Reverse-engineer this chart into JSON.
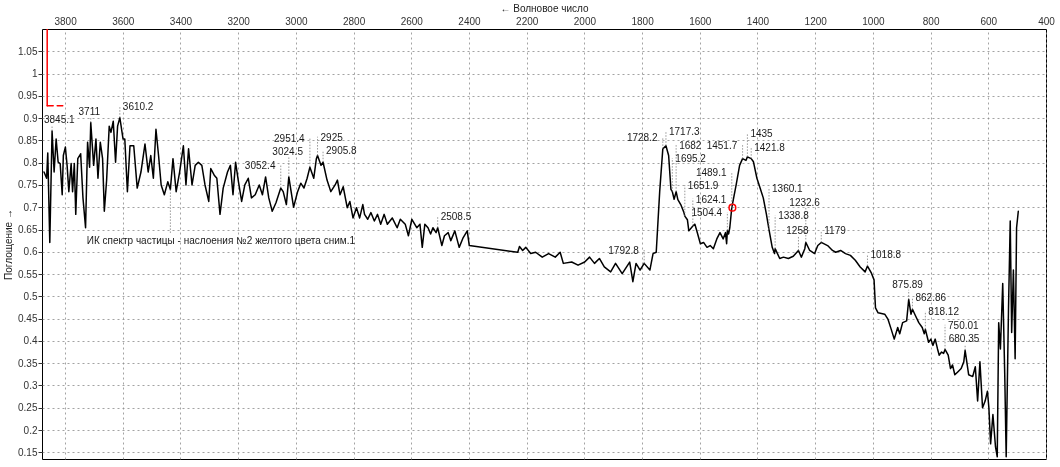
{
  "chart_data": {
    "type": "line",
    "xlabel": "← Волновое число",
    "ylabel": "Поглощение →",
    "xlim": [
      3880,
      400
    ],
    "ylim": [
      0.135,
      1.1
    ],
    "xticks": [
      3800,
      3600,
      3400,
      3200,
      3000,
      2800,
      2600,
      2400,
      2200,
      2000,
      1800,
      1600,
      1400,
      1200,
      1000,
      800,
      600,
      400
    ],
    "yticks": [
      0.15,
      0.2,
      0.25,
      0.3,
      0.35,
      0.4,
      0.45,
      0.5,
      0.55,
      0.6,
      0.65,
      0.7,
      0.75,
      0.8,
      0.85,
      0.9,
      0.95,
      1,
      1.05
    ],
    "grid": true,
    "series": [
      {
        "color": "#000000",
        "x": [
          3873,
          3864,
          3860,
          3853,
          3845.1,
          3838,
          3831,
          3824,
          3817,
          3810,
          3806,
          3799,
          3793,
          3787,
          3779,
          3774,
          3768,
          3763,
          3756,
          3746,
          3738,
          3729,
          3722,
          3715,
          3711,
          3701,
          3693,
          3686,
          3678,
          3670,
          3664,
          3656,
          3647,
          3641,
          3633,
          3625,
          3618,
          3610.2,
          3599,
          3593,
          3584,
          3575,
          3562,
          3550,
          3537,
          3523,
          3512,
          3503,
          3494,
          3485,
          3476,
          3467,
          3456,
          3444,
          3435,
          3426,
          3415,
          3403,
          3390,
          3381,
          3372,
          3360,
          3349,
          3338,
          3326,
          3315,
          3302,
          3295,
          3283,
          3274,
          3263,
          3252,
          3237,
          3227,
          3218,
          3209,
          3199,
          3188,
          3177,
          3165,
          3154,
          3141,
          3127,
          3116,
          3105,
          3094,
          3082,
          3069,
          3052.4,
          3044,
          3033,
          3024.5,
          3008,
          2994,
          2983,
          2972,
          2961,
          2951.4,
          2938,
          2929,
          2925,
          2913,
          2905.8,
          2892,
          2879,
          2864,
          2856,
          2847,
          2836,
          2822,
          2813,
          2802,
          2790,
          2779,
          2768,
          2762,
          2751,
          2740,
          2728,
          2717,
          2706,
          2694,
          2683,
          2666,
          2649,
          2638,
          2621,
          2610,
          2598,
          2581,
          2570,
          2562,
          2553,
          2542,
          2533,
          2525,
          2514,
          2508.5,
          2494,
          2485,
          2472,
          2463,
          2449,
          2434,
          2420,
          2406,
          2399,
          2231,
          2225,
          2214,
          2203,
          2186,
          2169,
          2146,
          2124,
          2101,
          2084,
          2073,
          2044,
          2022,
          1999,
          1982,
          1965,
          1948,
          1931,
          1909,
          1892,
          1869,
          1843,
          1832,
          1821,
          1807,
          1792.8,
          1773,
          1762,
          1751,
          1739,
          1728.2,
          1717.3,
          1708,
          1700,
          1695.2,
          1689,
          1682,
          1676,
          1666,
          1655,
          1651.9,
          1643,
          1638,
          1624.1,
          1617,
          1609,
          1598,
          1587,
          1575,
          1564,
          1553,
          1541,
          1530,
          1519,
          1511,
          1507,
          1504.4,
          1500,
          1496,
          1489.1,
          1474,
          1462,
          1451.7,
          1440,
          1435,
          1421.8,
          1414,
          1402,
          1391,
          1380,
          1369,
          1360.1,
          1349,
          1341,
          1338.8,
          1323,
          1310,
          1293,
          1276,
          1258,
          1248,
          1236,
          1232.6,
          1219,
          1202,
          1191,
          1179,
          1157,
          1140,
          1129,
          1112,
          1095,
          1078,
          1061,
          1044,
          1027,
          1018.8,
          1005,
          996,
          991,
          982,
          959,
          948,
          937,
          926,
          914,
          907,
          897,
          883,
          875.89,
          868,
          862.86,
          852,
          841,
          829,
          822,
          818.12,
          807,
          799,
          792,
          784,
          776,
          770,
          762,
          755,
          750.01,
          739,
          731,
          724,
          716,
          705,
          694,
          685,
          680.35,
          668,
          654,
          645,
          637,
          629,
          620,
          611,
          603,
          598,
          592,
          584,
          575,
          569,
          564,
          558,
          550,
          543,
          538,
          530,
          524,
          519,
          513,
          507,
          502,
          496
        ],
        "values": [
          0.779,
          0.765,
          0.822,
          0.621,
          0.871,
          0.779,
          0.853,
          0.801,
          0.798,
          0.728,
          0.816,
          0.835,
          0.794,
          0.735,
          0.798,
          0.735,
          0.798,
          0.684,
          0.809,
          0.82,
          0.721,
          0.654,
          0.846,
          0.79,
          0.89,
          0.794,
          0.853,
          0.765,
          0.846,
          0.809,
          0.691,
          0.761,
          0.882,
          0.868,
          0.893,
          0.801,
          0.882,
          0.901,
          0.853,
          0.853,
          0.735,
          0.838,
          0.838,
          0.743,
          0.779,
          0.842,
          0.779,
          0.816,
          0.765,
          0.875,
          0.816,
          0.75,
          0.728,
          0.757,
          0.74,
          0.809,
          0.735,
          0.779,
          0.838,
          0.75,
          0.831,
          0.75,
          0.794,
          0.801,
          0.794,
          0.75,
          0.713,
          0.787,
          0.772,
          0.765,
          0.684,
          0.743,
          0.779,
          0.794,
          0.728,
          0.801,
          0.757,
          0.713,
          0.75,
          0.765,
          0.721,
          0.728,
          0.75,
          0.728,
          0.768,
          0.721,
          0.691,
          0.71,
          0.743,
          0.735,
          0.706,
          0.768,
          0.7,
          0.735,
          0.754,
          0.743,
          0.765,
          0.79,
          0.765,
          0.809,
          0.816,
          0.794,
          0.801,
          0.761,
          0.735,
          0.75,
          0.761,
          0.728,
          0.746,
          0.699,
          0.713,
          0.676,
          0.699,
          0.676,
          0.706,
          0.684,
          0.673,
          0.688,
          0.669,
          0.684,
          0.662,
          0.684,
          0.662,
          0.676,
          0.654,
          0.673,
          0.662,
          0.636,
          0.673,
          0.654,
          0.662,
          0.61,
          0.662,
          0.654,
          0.64,
          0.654,
          0.643,
          0.654,
          0.614,
          0.636,
          0.643,
          0.625,
          0.647,
          0.61,
          0.632,
          0.647,
          0.614,
          0.599,
          0.612,
          0.603,
          0.61,
          0.596,
          0.599,
          0.588,
          0.596,
          0.588,
          0.599,
          0.574,
          0.577,
          0.57,
          0.577,
          0.588,
          0.574,
          0.585,
          0.566,
          0.555,
          0.574,
          0.551,
          0.577,
          0.533,
          0.574,
          0.559,
          0.574,
          0.559,
          0.596,
          0.599,
          0.735,
          0.831,
          0.838,
          0.816,
          0.74,
          0.735,
          0.718,
          0.735,
          0.717,
          0.706,
          0.688,
          0.68,
          0.672,
          0.647,
          0.658,
          0.662,
          0.644,
          0.618,
          0.621,
          0.61,
          0.614,
          0.607,
          0.629,
          0.643,
          0.629,
          0.643,
          0.618,
          0.648,
          0.64,
          0.654,
          0.699,
          0.75,
          0.794,
          0.809,
          0.805,
          0.813,
          0.809,
          0.802,
          0.765,
          0.743,
          0.721,
          0.684,
          0.65,
          0.61,
          0.596,
          0.607,
          0.585,
          0.588,
          0.585,
          0.59,
          0.603,
          0.588,
          0.607,
          0.621,
          0.603,
          0.596,
          0.614,
          0.621,
          0.614,
          0.603,
          0.599,
          0.603,
          0.596,
          0.592,
          0.581,
          0.566,
          0.555,
          0.568,
          0.552,
          0.537,
          0.474,
          0.463,
          0.46,
          0.449,
          0.427,
          0.404,
          0.43,
          0.416,
          0.441,
          0.445,
          0.493,
          0.46,
          0.471,
          0.456,
          0.441,
          0.43,
          0.416,
          0.426,
          0.397,
          0.404,
          0.39,
          0.404,
          0.382,
          0.368,
          0.375,
          0.372,
          0.381,
          0.368,
          0.338,
          0.346,
          0.324,
          0.331,
          0.338,
          0.353,
          0.379,
          0.324,
          0.32,
          0.342,
          0.265,
          0.353,
          0.25,
          0.265,
          0.287,
          0.25,
          0.169,
          0.235,
          0.162,
          0.14,
          0.441,
          0.382,
          0.529,
          0.324,
          0.14,
          0.471,
          0.669,
          0.419,
          0.559,
          0.36,
          0.654,
          0.691
        ]
      },
      {
        "type": "scatter",
        "marker": "circle",
        "color": "#ff0000",
        "x": [
          1487
        ],
        "values": [
          0.699
        ]
      },
      {
        "color": "#ff0000",
        "x": [
          3862,
          3862
        ],
        "values": [
          1.1,
          0.928
        ]
      },
      {
        "color": "#ff0000",
        "line_style": "dashed",
        "x": [
          3862,
          3808
        ],
        "values": [
          0.928,
          0.928
        ]
      }
    ],
    "annotations": [
      {
        "text": "3845.1",
        "x": 3845.1,
        "y": 0.871
      },
      {
        "text": "3711",
        "x": 3711,
        "y": 0.89
      },
      {
        "text": "3610.2",
        "x": 3610.2,
        "y": 0.901
      },
      {
        "text": "ИК спектр частицы - наслоения №2 желтого цвета сним.1",
        "x": 3435,
        "y": 0.74
      },
      {
        "text": "3052.4",
        "x": 3052.4,
        "y": 0.743
      },
      {
        "text": "3024.5",
        "x": 3024.5,
        "y": 0.768
      },
      {
        "text": "2951.4",
        "x": 2951.4,
        "y": 0.79
      },
      {
        "text": "2925",
        "x": 2925,
        "y": 0.816
      },
      {
        "text": "2905.8",
        "x": 2905.8,
        "y": 0.801
      },
      {
        "text": "2508.5",
        "x": 2508.5,
        "y": 0.654
      },
      {
        "text": "1792.8",
        "x": 1792.8,
        "y": 0.574
      },
      {
        "text": "1728.2",
        "x": 1728.2,
        "y": 0.831
      },
      {
        "text": "1717.3",
        "x": 1717.3,
        "y": 0.838
      },
      {
        "text": "1695.2",
        "x": 1695.2,
        "y": 0.735
      },
      {
        "text": "1682",
        "x": 1682,
        "y": 0.735
      },
      {
        "text": "1651.9",
        "x": 1651.9,
        "y": 0.68
      },
      {
        "text": "1624.1",
        "x": 1624.1,
        "y": 0.658
      },
      {
        "text": "1504.4",
        "x": 1504.4,
        "y": 0.648
      },
      {
        "text": "1489.1",
        "x": 1489.1,
        "y": 0.699
      },
      {
        "text": "1451.7",
        "x": 1451.7,
        "y": 0.809
      },
      {
        "text": "1435",
        "x": 1435,
        "y": 0.813
      },
      {
        "text": "1421.8",
        "x": 1421.8,
        "y": 0.809
      },
      {
        "text": "1360.1",
        "x": 1360.1,
        "y": 0.65
      },
      {
        "text": "1338.8",
        "x": 1338.8,
        "y": 0.607
      },
      {
        "text": "1258",
        "x": 1258,
        "y": 0.603
      },
      {
        "text": "1232.6",
        "x": 1232.6,
        "y": 0.621
      },
      {
        "text": "1179",
        "x": 1179,
        "y": 0.621
      },
      {
        "text": "1018.8",
        "x": 1018.8,
        "y": 0.568
      },
      {
        "text": "875.89",
        "x": 875.89,
        "y": 0.493
      },
      {
        "text": "862.86",
        "x": 862.86,
        "y": 0.471
      },
      {
        "text": "818.12",
        "x": 818.12,
        "y": 0.426
      },
      {
        "text": "750.01",
        "x": 750.01,
        "y": 0.381
      },
      {
        "text": "680.35",
        "x": 680.35,
        "y": 0.379
      }
    ]
  }
}
